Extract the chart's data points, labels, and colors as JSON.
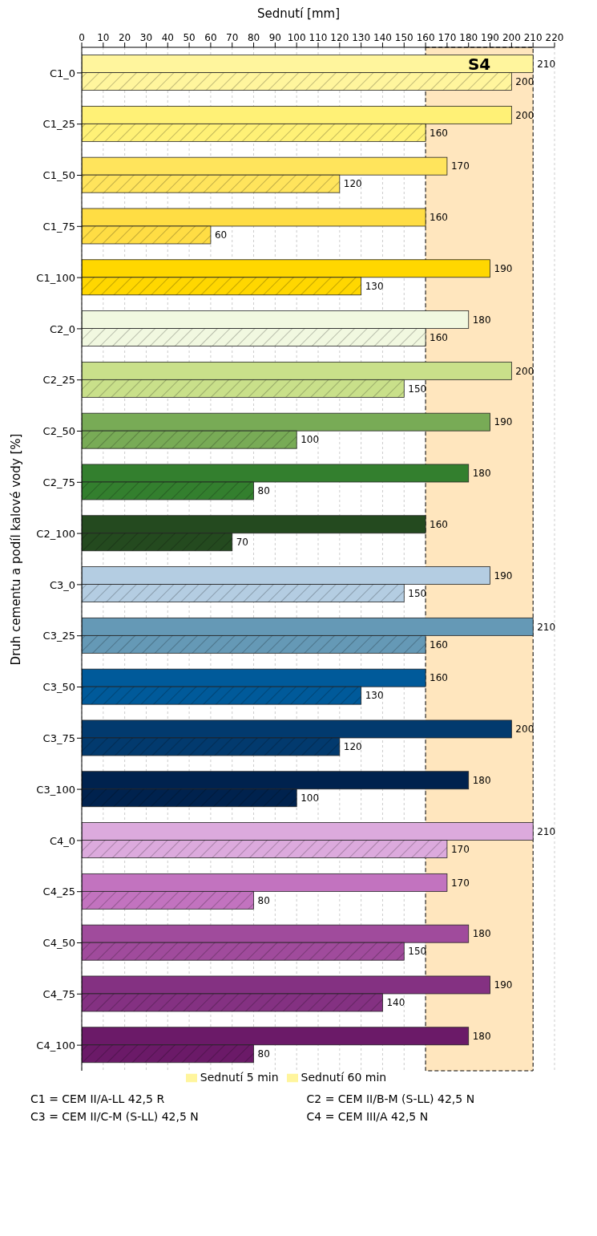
{
  "chart_data": {
    "type": "bar",
    "orientation": "horizontal",
    "xlabel": "Sednutí [mm]",
    "ylabel": "Druh cementu a podíl kalové vody [%]",
    "categories": [
      "C1_0",
      "C1_25",
      "C1_50",
      "C1_75",
      "C1_100",
      "C2_0",
      "C2_25",
      "C2_50",
      "C2_75",
      "C2_100",
      "C3_0",
      "C3_25",
      "C3_50",
      "C3_75",
      "C3_100",
      "C4_0",
      "C4_25",
      "C4_50",
      "C4_75",
      "C4_100"
    ],
    "series": [
      {
        "name": "Sednutí 5 min",
        "color": "#fff59d",
        "values": [
          210,
          200,
          170,
          160,
          190,
          180,
          200,
          190,
          180,
          160,
          190,
          210,
          160,
          200,
          180,
          210,
          170,
          180,
          190,
          180
        ],
        "colors": [
          "#fff59d",
          "#fff176",
          "#ffe45c",
          "#ffdd44",
          "#ffd700",
          "#f1f8e0",
          "#c9e08a",
          "#78ab56",
          "#337f2e",
          "#244a1f",
          "#b4cde2",
          "#6599b6",
          "#005a9a",
          "#023a6e",
          "#00224e",
          "#dcaadd",
          "#c273bf",
          "#a04b9c",
          "#843182",
          "#6b1a68"
        ]
      },
      {
        "name": "Sednutí 60 min",
        "color": "#fff59d",
        "values": [
          200,
          160,
          120,
          60,
          130,
          160,
          150,
          100,
          80,
          70,
          150,
          160,
          130,
          120,
          100,
          170,
          80,
          150,
          140,
          80
        ],
        "colors": [
          "#fff59d",
          "#fff176",
          "#ffe45c",
          "#ffdd44",
          "#ffd700",
          "#f1f8e0",
          "#c9e08a",
          "#78ab56",
          "#337f2e",
          "#244a1f",
          "#b4cde2",
          "#6599b6",
          "#005a9a",
          "#023a6e",
          "#00224e",
          "#dcaadd",
          "#c273bf",
          "#a04b9c",
          "#843182",
          "#6b1a68"
        ]
      }
    ],
    "xlim": [
      0,
      220
    ],
    "xticks": [
      0,
      10,
      20,
      30,
      40,
      50,
      60,
      70,
      80,
      90,
      100,
      110,
      120,
      130,
      140,
      150,
      160,
      170,
      180,
      190,
      200,
      210,
      220
    ],
    "bands": [
      {
        "axis": "x",
        "from": 160,
        "to": 210,
        "label": "S4",
        "color": "#ffe6be"
      }
    ],
    "grid": "x",
    "data_labels": true,
    "legend": "bottom",
    "annotations": [
      "C1 = CEM II/A-LL 42,5 R",
      "C2 = CEM II/B-M (S-LL) 42,5 N",
      "C3 = CEM II/C-M (S-LL) 42,5 N",
      "C4 = CEM III/A 42,5 N"
    ]
  }
}
